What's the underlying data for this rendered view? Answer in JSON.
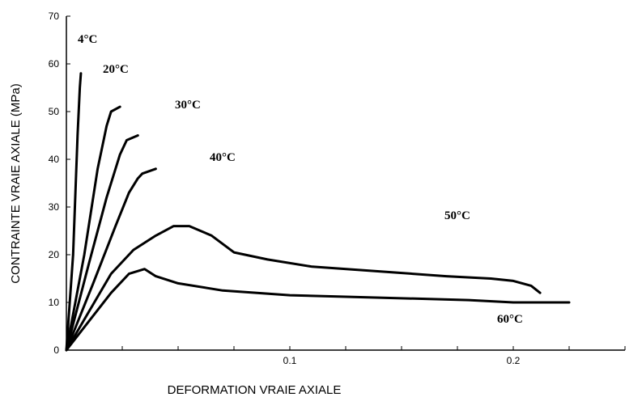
{
  "chart_data": {
    "type": "line",
    "title": "",
    "xlabel": "DEFORMATION VRAIE AXIALE",
    "ylabel": "CONTRAINTE VRAIE AXIALE (MPa)",
    "xlim": [
      0,
      0.25
    ],
    "ylim": [
      0,
      70
    ],
    "x_tick_labels": [
      "0.1",
      "0.2"
    ],
    "y_tick_labels": [
      "0",
      "10",
      "20",
      "30",
      "40",
      "50",
      "60",
      "70"
    ],
    "grid": false,
    "legend": "none",
    "series": [
      {
        "name": "4°C",
        "x": [
          0,
          0.003,
          0.005,
          0.006,
          0.0065
        ],
        "y": [
          0,
          20,
          45,
          55,
          58
        ]
      },
      {
        "name": "20°C",
        "x": [
          0,
          0.008,
          0.014,
          0.018,
          0.02,
          0.024
        ],
        "y": [
          0,
          20,
          38,
          47,
          50,
          51
        ]
      },
      {
        "name": "30°C",
        "x": [
          0,
          0.01,
          0.018,
          0.024,
          0.027,
          0.032
        ],
        "y": [
          0,
          18,
          32,
          41,
          44,
          45
        ]
      },
      {
        "name": "40°C",
        "x": [
          0,
          0.012,
          0.022,
          0.028,
          0.032,
          0.034,
          0.04
        ],
        "y": [
          0,
          14,
          26,
          33,
          36,
          37,
          38
        ]
      },
      {
        "name": "50°C",
        "x": [
          0,
          0.01,
          0.02,
          0.03,
          0.04,
          0.048,
          0.055,
          0.065,
          0.075,
          0.09,
          0.11,
          0.14,
          0.17,
          0.19,
          0.2,
          0.208,
          0.212
        ],
        "y": [
          0,
          8,
          16,
          21,
          24,
          26,
          26,
          24,
          20.5,
          19,
          17.5,
          16.5,
          15.5,
          15,
          14.5,
          13.5,
          12
        ]
      },
      {
        "name": "60°C",
        "x": [
          0,
          0.01,
          0.02,
          0.028,
          0.035,
          0.04,
          0.05,
          0.07,
          0.1,
          0.14,
          0.18,
          0.2,
          0.225
        ],
        "y": [
          0,
          6,
          12,
          16,
          17,
          15.5,
          14,
          12.5,
          11.5,
          11,
          10.5,
          10,
          10
        ]
      }
    ]
  }
}
